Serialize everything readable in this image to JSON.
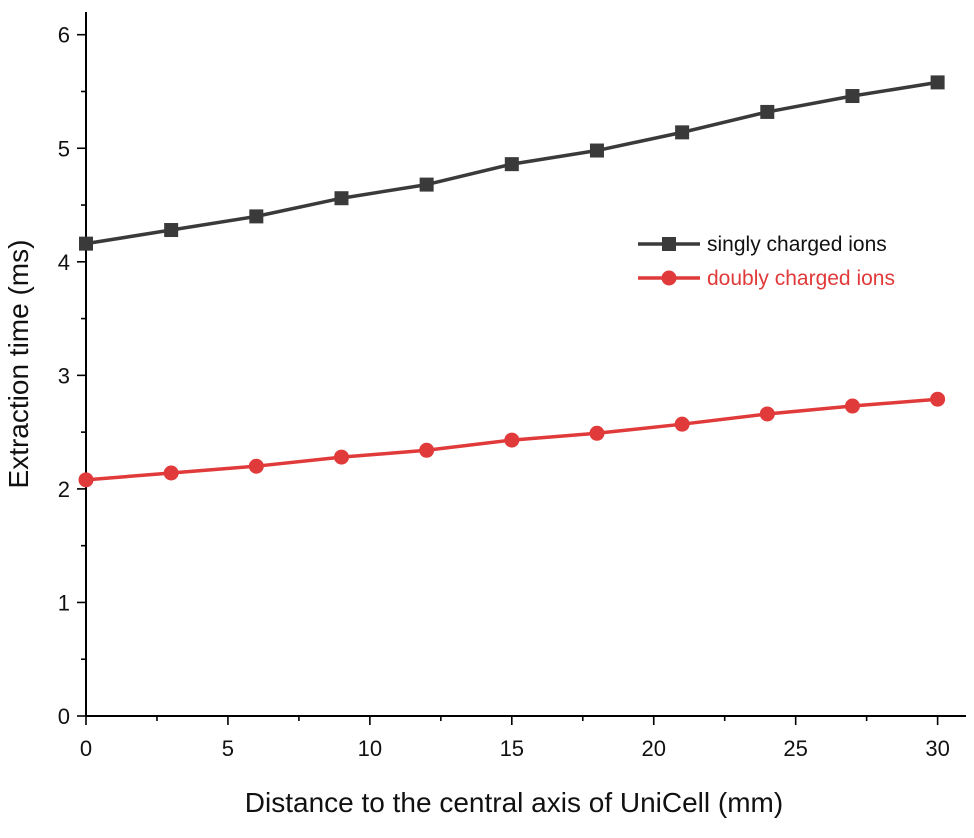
{
  "chart_data": {
    "type": "line",
    "title": "",
    "xlabel": "Distance to the central axis of UniCell (mm)",
    "ylabel": "Extraction time (ms)",
    "xlim": [
      0,
      31
    ],
    "ylim": [
      0,
      6.2
    ],
    "x_major_ticks": [
      0,
      5,
      10,
      15,
      20,
      25,
      30
    ],
    "x_minor_ticks": [
      2.5,
      7.5,
      12.5,
      17.5,
      22.5,
      27.5
    ],
    "y_major_ticks": [
      0,
      1,
      2,
      3,
      4,
      5,
      6
    ],
    "y_minor_ticks": [
      0.5,
      1.5,
      2.5,
      3.5,
      4.5,
      5.5
    ],
    "x_tick_labels": [
      "0",
      "5",
      "10",
      "15",
      "20",
      "25",
      "30"
    ],
    "y_tick_labels": [
      "0",
      "1",
      "2",
      "3",
      "4",
      "5",
      "6"
    ],
    "grid": false,
    "legend_position": "right",
    "x": [
      0,
      3,
      6,
      9,
      12,
      15,
      18,
      21,
      24,
      27,
      30
    ],
    "series": [
      {
        "name": "singly charged ions",
        "color": "#3a3a3a",
        "marker": "square",
        "values": [
          4.16,
          4.28,
          4.4,
          4.56,
          4.68,
          4.86,
          4.98,
          5.14,
          5.32,
          5.46,
          5.58
        ]
      },
      {
        "name": "doubly charged ions",
        "color": "#e03a3a",
        "marker": "circle",
        "values": [
          2.08,
          2.14,
          2.2,
          2.28,
          2.34,
          2.43,
          2.49,
          2.57,
          2.66,
          2.73,
          2.79
        ]
      }
    ]
  }
}
